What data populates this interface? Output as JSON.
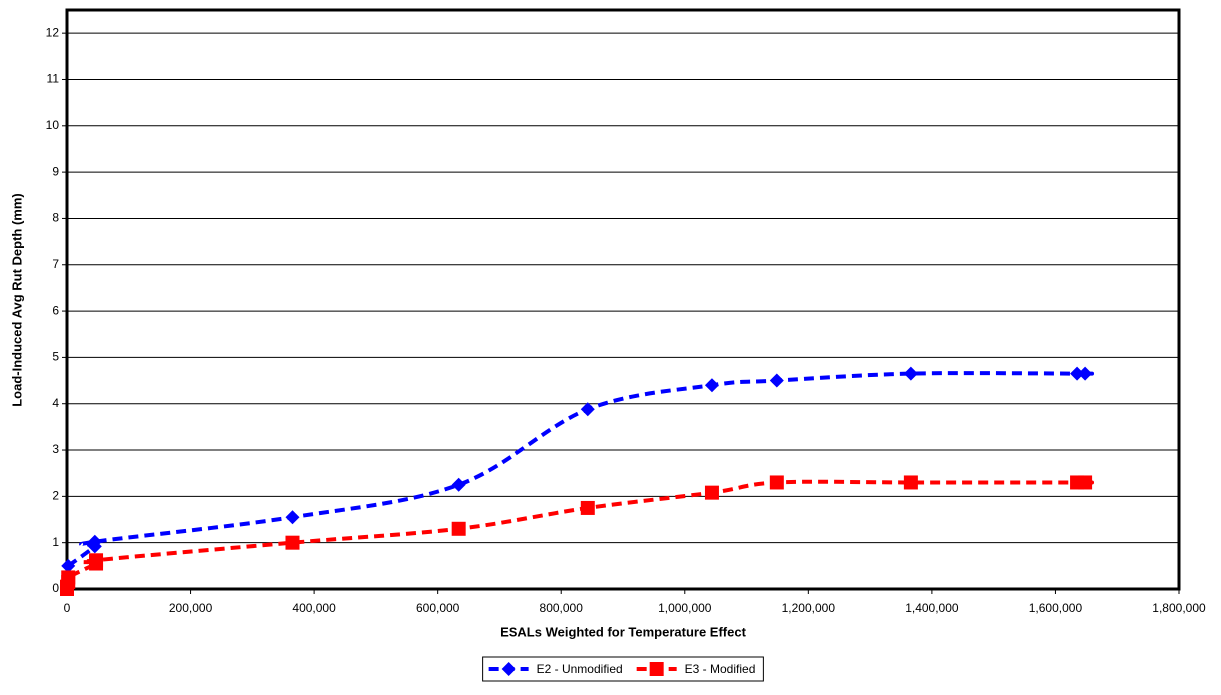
{
  "chart_data": {
    "type": "line",
    "x_label": "ESALs Weighted for Temperature Effect",
    "y_label": "Load-Induced Avg Rut Depth (mm)",
    "xlim": [
      0,
      1800000
    ],
    "xticks": [
      0,
      {
        "value": 200000,
        "label": "200,000"
      },
      {
        "value": 400000,
        "label": "400,000"
      },
      {
        "value": 600000,
        "label": "600,000"
      },
      {
        "value": 800000,
        "label": "800,000"
      },
      {
        "value": 1000000,
        "label": "1,000,000"
      },
      {
        "value": 1200000,
        "label": "1,200,000"
      },
      {
        "value": 1400000,
        "label": "1,400,000"
      },
      {
        "value": 1600000,
        "label": "1,600,000"
      },
      {
        "value": 1800000,
        "label": "1,800,000"
      }
    ],
    "ylim": [
      0,
      12.5
    ],
    "yticks": [
      0,
      1,
      2,
      3,
      4,
      5,
      6,
      7,
      8,
      9,
      10,
      11,
      12
    ],
    "grid": true,
    "legend": "bottom",
    "series": [
      {
        "name": "E2 - Unmodified",
        "color": "#0000ff",
        "marker": "diamond",
        "x": [
          2000,
          45000,
          45000,
          365000,
          634000,
          843000,
          1044000,
          1149000,
          1366000,
          1635000,
          1648000
        ],
        "values": [
          0.5,
          0.92,
          1.02,
          1.55,
          2.25,
          3.88,
          4.4,
          4.5,
          4.65,
          4.65,
          4.65
        ]
      },
      {
        "name": "E3 - Modified",
        "color": "#ff0000",
        "marker": "square",
        "x": [
          0,
          0,
          2000,
          2000,
          47000,
          47000,
          365000,
          634000,
          843000,
          1044000,
          1149000,
          1366000,
          1635000,
          1648000
        ],
        "values": [
          0,
          0.05,
          0.15,
          0.25,
          0.55,
          0.62,
          1.0,
          1.3,
          1.75,
          2.08,
          2.3,
          2.3,
          2.3,
          2.3
        ]
      }
    ]
  }
}
